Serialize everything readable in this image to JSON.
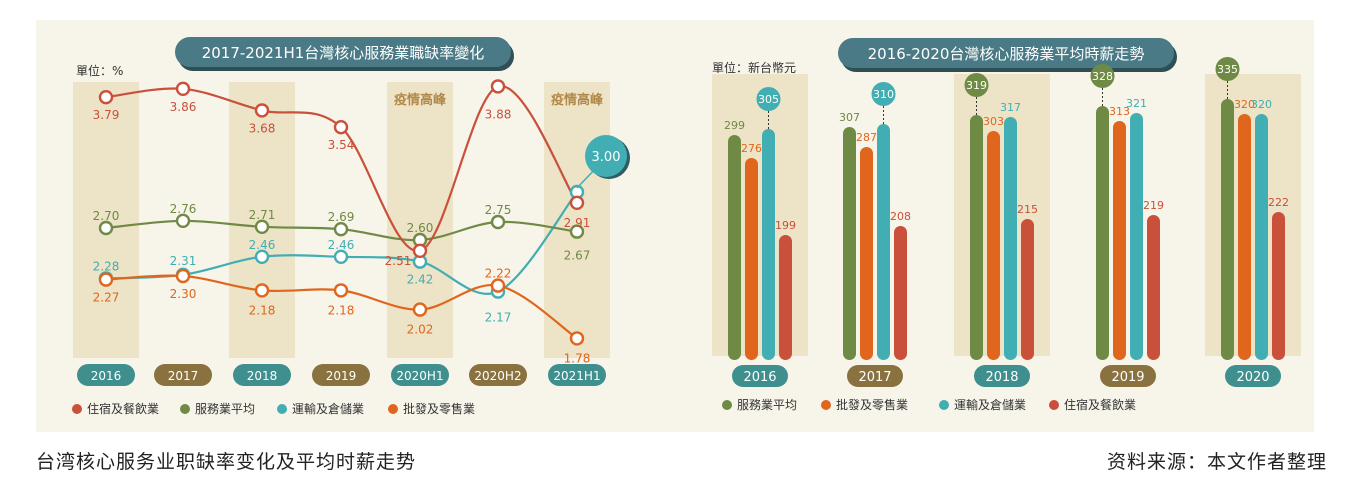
{
  "caption_left": "台湾核心服务业职缺率变化及平均时薪走势",
  "caption_right": "资料来源：本文作者整理",
  "colors": {
    "panel_bg": "#f7f4ea",
    "column_band": "#ede3c6",
    "title_bg": "#4a7a85",
    "red": "#c9503a",
    "green": "#6e8a44",
    "teal": "#41aeb3",
    "orange": "#e0661d",
    "pill_teal": "#3f8f8f",
    "pill_brown": "#8a7240",
    "hl_text": "#b3894a"
  },
  "chart_data": [
    {
      "type": "line",
      "title": "2017-2021H1台灣核心服務業職缺率變化",
      "unit_label": "單位：%",
      "categories": [
        "2016",
        "2017",
        "2018",
        "2019",
        "2020H1",
        "2020H2",
        "2021H1"
      ],
      "highlight_labels": [
        "疫情高峰",
        "疫情高峰"
      ],
      "highlight_categories": [
        "2020H1",
        "2021H1"
      ],
      "series": [
        {
          "name": "住宿及餐飲業",
          "values": [
            3.79,
            3.86,
            3.68,
            3.54,
            2.51,
            3.88,
            2.91
          ]
        },
        {
          "name": "服務業平均",
          "values": [
            2.7,
            2.76,
            2.71,
            2.69,
            2.6,
            2.75,
            2.67
          ]
        },
        {
          "name": "運輸及倉儲業",
          "values": [
            2.28,
            2.31,
            2.46,
            2.46,
            2.42,
            2.17,
            3.0
          ]
        },
        {
          "name": "批發及零售業",
          "values": [
            2.27,
            2.3,
            2.18,
            2.18,
            2.02,
            2.22,
            1.78
          ]
        }
      ],
      "callout_value": "3.00"
    },
    {
      "type": "bar",
      "title": "2016-2020台灣核心服務業平均時薪走勢",
      "unit_label": "單位：新台幣元",
      "categories": [
        "2016",
        "2017",
        "2018",
        "2019",
        "2020"
      ],
      "series": [
        {
          "name": "服務業平均",
          "values": [
            299,
            307,
            319,
            328,
            335
          ]
        },
        {
          "name": "批發及零售業",
          "values": [
            276,
            287,
            303,
            313,
            320
          ]
        },
        {
          "name": "運輸及倉儲業",
          "values": [
            305,
            310,
            317,
            321,
            320
          ]
        },
        {
          "name": "住宿及餐飲業",
          "values": [
            199,
            208,
            215,
            219,
            222
          ]
        }
      ]
    }
  ]
}
